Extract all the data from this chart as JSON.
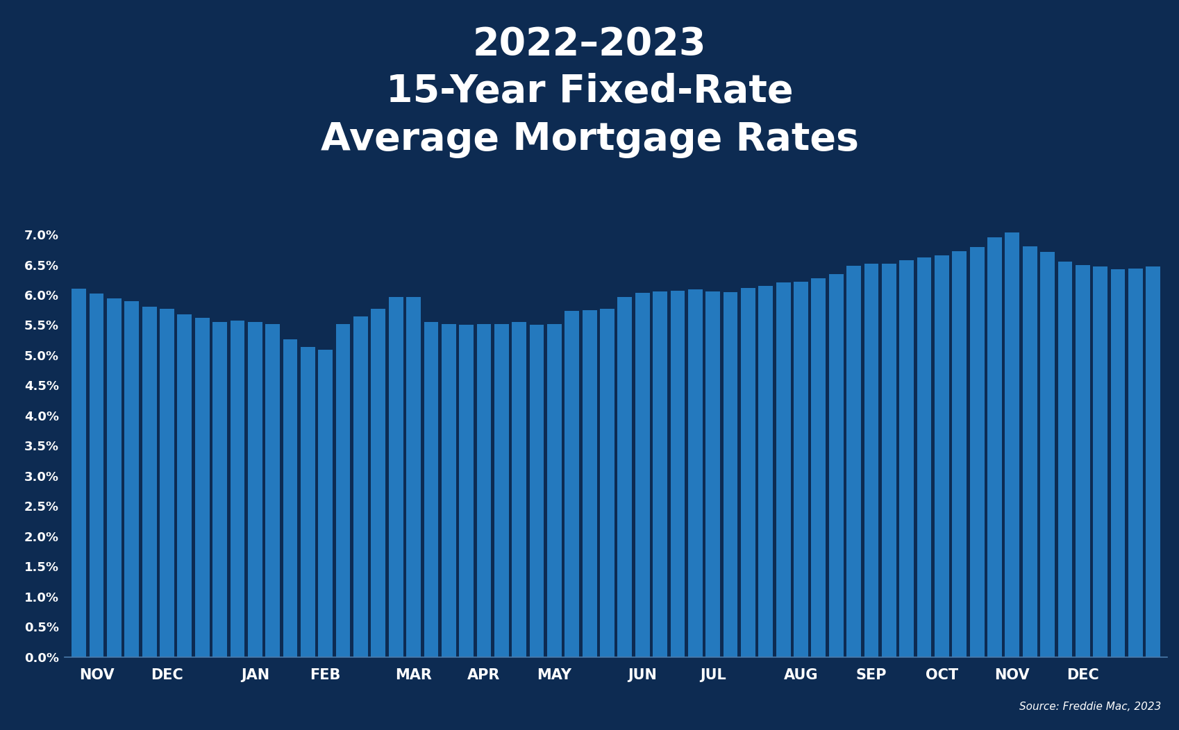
{
  "title_line1": "2022–2023",
  "title_line2": "15-Year Fixed-Rate",
  "title_line3": "Average Mortgage Rates",
  "source_text": "Source: Freddie Mac, 2023",
  "background_color": "#0d2b52",
  "bar_color": "#2479be",
  "text_color": "#ffffff",
  "ylim": [
    0,
    7.5
  ],
  "xtick_labels": [
    "NOV",
    "DEC",
    "JAN",
    "FEB",
    "MAR",
    "APR",
    "MAY",
    "JUN",
    "JUL",
    "AUG",
    "SEP",
    "OCT",
    "NOV",
    "DEC"
  ],
  "values": [
    6.1,
    6.02,
    5.94,
    5.9,
    5.8,
    5.77,
    5.68,
    5.62,
    5.55,
    5.57,
    5.55,
    5.52,
    5.26,
    5.14,
    5.09,
    5.52,
    5.64,
    5.77,
    5.97,
    5.97,
    5.55,
    5.52,
    5.5,
    5.52,
    5.52,
    5.55,
    5.5,
    5.52,
    5.73,
    5.75,
    5.77,
    5.97,
    6.03,
    6.06,
    6.07,
    6.09,
    6.06,
    6.05,
    6.11,
    6.15,
    6.21,
    6.22,
    6.28,
    6.35,
    6.48,
    6.52,
    6.52,
    6.57,
    6.62,
    6.65,
    6.72,
    6.79,
    6.95,
    7.03,
    6.8,
    6.71,
    6.55,
    6.5,
    6.47,
    6.43,
    6.44,
    6.47
  ],
  "xtick_positions": [
    1,
    5,
    10,
    14,
    19,
    23,
    27,
    32,
    36,
    41,
    45,
    49,
    53,
    57
  ]
}
